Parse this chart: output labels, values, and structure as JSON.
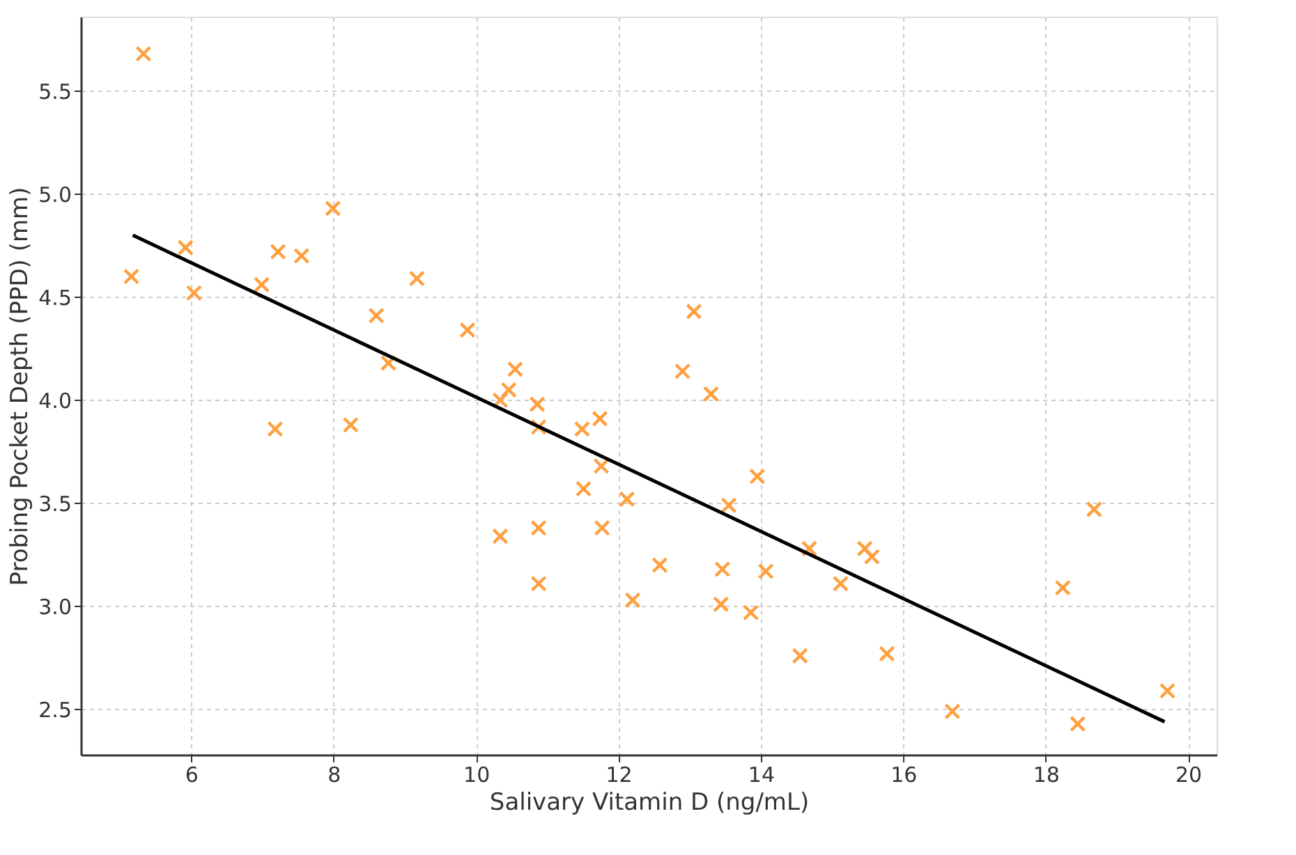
{
  "chart_data": {
    "type": "scatter",
    "xlabel": "Salivary Vitamin D (ng/mL)",
    "ylabel": "Probing Pocket Depth (PPD) (mm)",
    "xlim": [
      4.45,
      20.4
    ],
    "ylim": [
      2.28,
      5.86
    ],
    "xticks": [
      6,
      8,
      10,
      12,
      14,
      16,
      18,
      20
    ],
    "yticks": [
      2.5,
      {
        "value": 3,
        "label": "3.0"
      },
      3.5,
      {
        "value": 4,
        "label": "4.0"
      },
      4.5,
      {
        "value": 5,
        "label": "5.0"
      },
      5.5
    ],
    "grid": true,
    "series": [
      {
        "marker": "cross",
        "color": "#ffa040",
        "x": [
          5.33,
          5.16,
          5.92,
          6.04,
          7.22,
          7.55,
          6.99,
          7.18,
          7.99,
          8.24,
          8.6,
          8.77,
          9.17,
          9.88,
          10.55,
          10.46,
          10.34,
          10.86,
          10.88,
          11.49,
          11.74,
          11.51,
          11.76,
          10.34,
          10.88,
          11.77,
          10.88,
          12.12,
          12.2,
          12.58,
          13.06,
          12.9,
          13.3,
          13.55,
          13.95,
          13.46,
          13.44,
          13.86,
          14.07,
          14.68,
          14.55,
          15.46,
          15.56,
          15.12,
          15.77,
          16.69,
          18.24,
          18.68,
          18.45,
          19.71
        ],
        "values": [
          5.68,
          4.6,
          4.74,
          4.52,
          4.72,
          4.7,
          4.56,
          3.86,
          4.93,
          3.88,
          4.41,
          4.18,
          4.59,
          4.34,
          4.15,
          4.05,
          4.0,
          3.98,
          3.87,
          3.86,
          3.91,
          3.57,
          3.68,
          3.34,
          3.38,
          3.38,
          3.11,
          3.52,
          3.03,
          3.2,
          4.43,
          4.14,
          4.03,
          3.49,
          3.63,
          3.18,
          3.01,
          2.97,
          3.17,
          3.28,
          2.76,
          3.28,
          3.24,
          3.11,
          2.77,
          2.49,
          3.09,
          3.47,
          2.43,
          2.59
        ]
      },
      {
        "type": "line",
        "color": "#000000",
        "line_style": "solid",
        "x": [
          5.18,
          19.67
        ],
        "values": [
          4.8,
          2.44
        ]
      }
    ]
  }
}
